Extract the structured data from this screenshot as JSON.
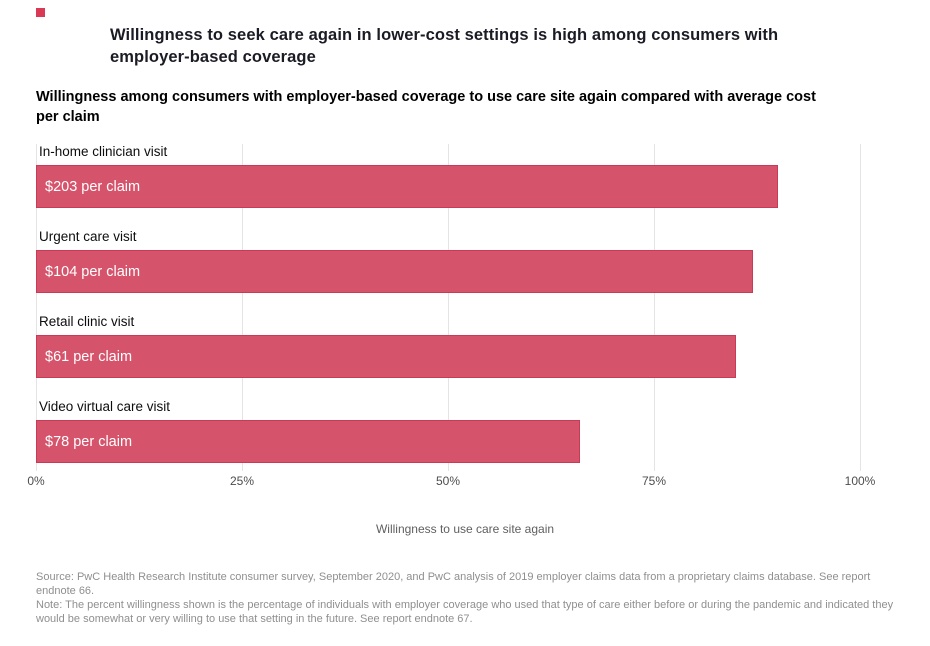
{
  "brand": {
    "accent_color": "#d93954"
  },
  "header": {
    "title": "Willingness to seek care again in lower-cost settings is high among consumers with employer-based coverage",
    "subtitle": "Willingness among consumers with employer-based coverage to use care site again compared with average cost per claim"
  },
  "chart_data": {
    "type": "bar",
    "orientation": "horizontal",
    "categories": [
      "In-home clinician visit",
      "Urgent care visit",
      "Retail clinic visit",
      "Video virtual care visit"
    ],
    "values": [
      90,
      87,
      85,
      66
    ],
    "bar_labels": [
      "$203 per claim",
      "$104 per claim",
      "$61 per claim",
      "$78 per claim"
    ],
    "xlabel": "Willingness to use care site again",
    "x_ticks": [
      "0%",
      "25%",
      "50%",
      "75%",
      "100%"
    ],
    "x_tick_positions": [
      0,
      25,
      50,
      75,
      100
    ],
    "xlim": [
      0,
      100
    ],
    "grid": "vertical-gridlines",
    "legend": "none",
    "bar_color": "#d6546b",
    "bar_border_color": "#c93a56",
    "value_label_color": "#ffffff"
  },
  "footer": {
    "source": "Source: PwC Health Research Institute consumer survey, September 2020, and PwC analysis of 2019 employer claims data from a proprietary claims database. See report endnote 66.",
    "note": "Note: The percent willingness shown is the percentage of individuals with employer coverage who used that type of care either before or during the pandemic and indicated they would be somewhat or very willing to use that setting in the future. See report endnote 67."
  }
}
